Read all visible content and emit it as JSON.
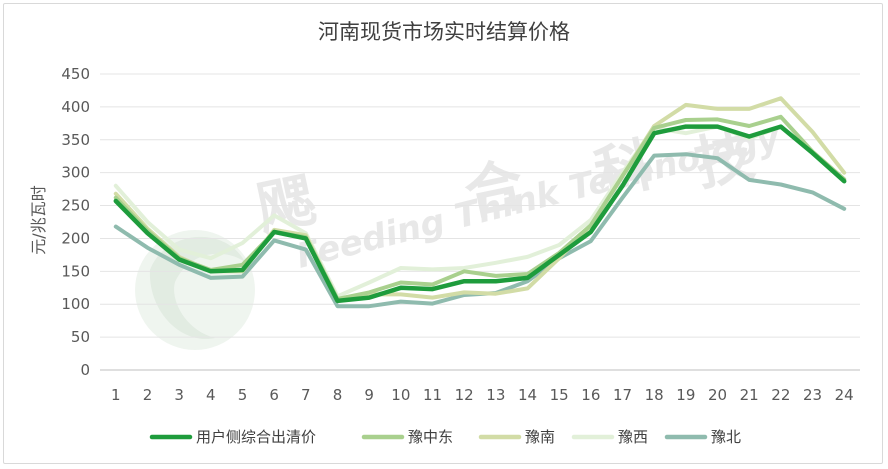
{
  "chart_data": {
    "type": "line",
    "title": "河南现货市场实时结算价格",
    "xlabel": "",
    "ylabel": "元/兆瓦时",
    "ylim": [
      0,
      450
    ],
    "yticks": [
      0,
      50,
      100,
      150,
      200,
      250,
      300,
      350,
      400,
      450
    ],
    "grid": true,
    "legend_position": "bottom",
    "x": [
      "1",
      "2",
      "3",
      "4",
      "5",
      "6",
      "7",
      "8",
      "9",
      "10",
      "11",
      "12",
      "13",
      "14",
      "15",
      "16",
      "17",
      "18",
      "19",
      "20",
      "21",
      "22",
      "23",
      "24"
    ],
    "series": [
      {
        "name": "用户侧综合出清价",
        "color": "#1e9c3c",
        "values": [
          257,
          208,
          168,
          150,
          152,
          210,
          200,
          105,
          110,
          125,
          123,
          135,
          135,
          140,
          175,
          210,
          280,
          360,
          370,
          370,
          355,
          370,
          330,
          287
        ]
      },
      {
        "name": "豫中东",
        "color": "#a9d08e",
        "values": [
          262,
          212,
          170,
          152,
          160,
          210,
          202,
          108,
          118,
          133,
          130,
          150,
          143,
          146,
          178,
          220,
          295,
          368,
          380,
          381,
          371,
          385,
          332,
          290
        ]
      },
      {
        "name": "豫南",
        "color": "#d2dca6",
        "values": [
          268,
          215,
          172,
          150,
          150,
          213,
          205,
          107,
          115,
          115,
          110,
          118,
          116,
          124,
          170,
          220,
          295,
          371,
          403,
          397,
          397,
          413,
          362,
          300
        ]
      },
      {
        "name": "豫西",
        "color": "#e2f0d9",
        "values": [
          280,
          225,
          183,
          170,
          193,
          235,
          208,
          112,
          133,
          155,
          153,
          155,
          163,
          172,
          190,
          228,
          300,
          368,
          360,
          370,
          352,
          370,
          330,
          290
        ]
      },
      {
        "name": "豫北",
        "color": "#8fbbae",
        "values": [
          218,
          186,
          160,
          140,
          142,
          197,
          183,
          97,
          97,
          104,
          101,
          114,
          117,
          135,
          170,
          196,
          262,
          326,
          328,
          322,
          289,
          282,
          270,
          245
        ]
      }
    ]
  },
  "watermark": {
    "chars": [
      "飔",
      "合",
      "科",
      "技"
    ],
    "english": "Feeding Think Technology"
  }
}
